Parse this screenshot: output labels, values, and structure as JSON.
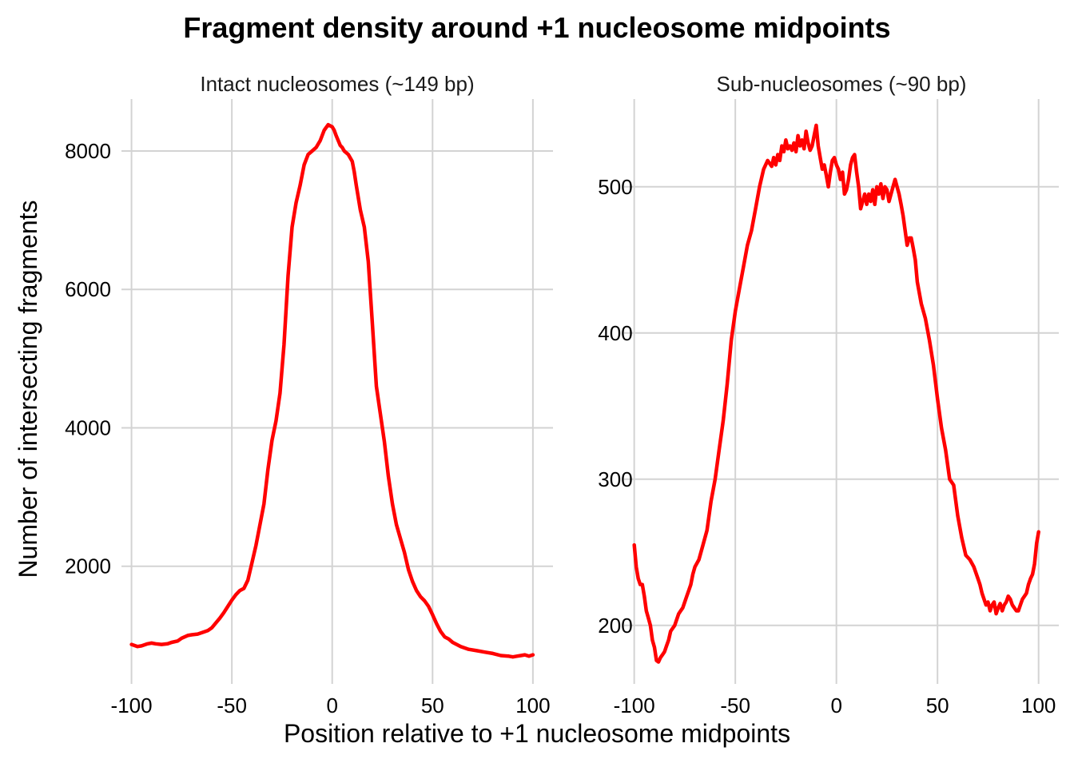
{
  "title": "Fragment density around +1 nucleosome midpoints",
  "xlabel": "Position relative to +1 nucleosome midpoints",
  "ylabel": "Number of intersecting fragments",
  "line_color": "#ff0000",
  "grid_color": "#d3d3d3",
  "chart_data": [
    {
      "type": "line",
      "title": "Intact nucleosomes (~149 bp)",
      "xlim": [
        -105,
        110
      ],
      "ylim": [
        300,
        8750
      ],
      "x_ticks": [
        -100,
        -50,
        0,
        50,
        100
      ],
      "x_tick_labels": [
        "-100",
        "-50",
        "0",
        "50",
        "100"
      ],
      "y_ticks": [
        2000,
        4000,
        6000,
        8000
      ],
      "y_tick_labels": [
        "2000",
        "4000",
        "6000",
        "8000"
      ],
      "grid": true,
      "series": [
        {
          "x": [
            -100,
            -97,
            -95,
            -92,
            -90,
            -88,
            -85,
            -82,
            -80,
            -77,
            -75,
            -72,
            -70,
            -67,
            -65,
            -62,
            -60,
            -58,
            -56,
            -54,
            -52,
            -50,
            -48,
            -46,
            -44,
            -42,
            -40,
            -38,
            -36,
            -34,
            -32,
            -30,
            -28,
            -26,
            -24,
            -22,
            -20,
            -18,
            -16,
            -14,
            -12,
            -10,
            -8,
            -6,
            -4,
            -2,
            0,
            1,
            2,
            3,
            4,
            5,
            6,
            8,
            10,
            11,
            12,
            14,
            16,
            18,
            20,
            22,
            24,
            26,
            28,
            30,
            32,
            34,
            36,
            38,
            40,
            42,
            44,
            46,
            48,
            50,
            52,
            54,
            56,
            58,
            60,
            64,
            68,
            72,
            76,
            80,
            84,
            88,
            90,
            92,
            94,
            96,
            98,
            100
          ],
          "y": [
            870,
            840,
            850,
            880,
            890,
            880,
            870,
            880,
            900,
            920,
            960,
            1000,
            1010,
            1020,
            1040,
            1070,
            1110,
            1180,
            1250,
            1330,
            1420,
            1510,
            1590,
            1650,
            1680,
            1800,
            2050,
            2300,
            2600,
            2900,
            3400,
            3820,
            4100,
            4500,
            5200,
            6200,
            6900,
            7250,
            7500,
            7800,
            7950,
            8000,
            8050,
            8150,
            8300,
            8380,
            8350,
            8300,
            8220,
            8150,
            8080,
            8050,
            8000,
            7950,
            7850,
            7700,
            7500,
            7150,
            6900,
            6400,
            5500,
            4600,
            4200,
            3800,
            3300,
            2900,
            2600,
            2400,
            2200,
            1950,
            1780,
            1650,
            1560,
            1500,
            1420,
            1300,
            1170,
            1060,
            980,
            950,
            900,
            840,
            800,
            780,
            760,
            740,
            710,
            700,
            690,
            700,
            710,
            720,
            700,
            720
          ]
        }
      ]
    },
    {
      "type": "line",
      "title": "Sub-nucleosomes (~90 bp)",
      "xlim": [
        -105,
        110
      ],
      "ylim": [
        160,
        560
      ],
      "x_ticks": [
        -100,
        -50,
        0,
        50,
        100
      ],
      "x_tick_labels": [
        "-100",
        "-50",
        "0",
        "50",
        "100"
      ],
      "y_ticks": [
        200,
        300,
        400,
        500
      ],
      "y_tick_labels": [
        "200",
        "300",
        "400",
        "500"
      ],
      "grid": true,
      "series": [
        {
          "x": [
            -100,
            -99,
            -98,
            -97,
            -96,
            -95,
            -94,
            -93,
            -92,
            -91,
            -90,
            -89,
            -88,
            -87,
            -86,
            -85,
            -84,
            -83,
            -82,
            -81,
            -80,
            -79,
            -78,
            -77,
            -76,
            -75,
            -74,
            -73,
            -72,
            -71,
            -70,
            -68,
            -66,
            -64,
            -62,
            -60,
            -58,
            -56,
            -54,
            -52,
            -50,
            -48,
            -46,
            -44,
            -42,
            -40,
            -38,
            -36,
            -34,
            -32,
            -31,
            -30,
            -29,
            -28,
            -27,
            -26,
            -25,
            -24,
            -23,
            -22,
            -21,
            -20,
            -19,
            -18,
            -17,
            -16,
            -15,
            -14,
            -13,
            -12,
            -11,
            -10,
            -9,
            -8,
            -7,
            -6,
            -5,
            -4,
            -3,
            -2,
            -1,
            0,
            1,
            2,
            3,
            4,
            5,
            6,
            7,
            8,
            9,
            10,
            11,
            12,
            13,
            14,
            15,
            16,
            17,
            18,
            19,
            20,
            21,
            22,
            23,
            24,
            25,
            26,
            27,
            28,
            29,
            30,
            31,
            32,
            33,
            34,
            35,
            36,
            37,
            38,
            39,
            40,
            42,
            44,
            46,
            48,
            50,
            52,
            54,
            56,
            58,
            60,
            62,
            64,
            66,
            68,
            70,
            71,
            72,
            73,
            74,
            75,
            76,
            77,
            78,
            79,
            80,
            81,
            82,
            83,
            84,
            85,
            86,
            87,
            88,
            89,
            90,
            91,
            92,
            93,
            94,
            95,
            96,
            97,
            98,
            99,
            100
          ],
          "y": [
            255,
            240,
            232,
            228,
            228,
            220,
            210,
            205,
            200,
            190,
            185,
            176,
            175,
            178,
            180,
            182,
            186,
            190,
            196,
            198,
            200,
            204,
            208,
            210,
            212,
            216,
            220,
            224,
            228,
            235,
            240,
            245,
            255,
            265,
            285,
            300,
            320,
            340,
            365,
            395,
            415,
            430,
            445,
            460,
            470,
            485,
            500,
            512,
            518,
            514,
            520,
            515,
            522,
            518,
            528,
            524,
            532,
            526,
            528,
            525,
            530,
            524,
            535,
            528,
            532,
            526,
            538,
            530,
            525,
            528,
            535,
            542,
            528,
            520,
            512,
            515,
            508,
            500,
            510,
            518,
            520,
            515,
            512,
            505,
            510,
            495,
            498,
            505,
            515,
            520,
            522,
            510,
            500,
            485,
            490,
            495,
            488,
            495,
            490,
            498,
            488,
            500,
            495,
            502,
            492,
            500,
            498,
            490,
            495,
            500,
            505,
            500,
            495,
            488,
            480,
            470,
            460,
            465,
            465,
            458,
            450,
            435,
            420,
            410,
            395,
            378,
            355,
            335,
            320,
            300,
            296,
            275,
            260,
            248,
            245,
            240,
            232,
            228,
            222,
            218,
            214,
            216,
            210,
            214,
            216,
            208,
            212,
            215,
            210,
            214,
            216,
            220,
            218,
            214,
            212,
            210,
            210,
            214,
            218,
            220,
            222,
            228,
            232,
            235,
            242,
            256,
            264
          ]
        }
      ]
    }
  ]
}
